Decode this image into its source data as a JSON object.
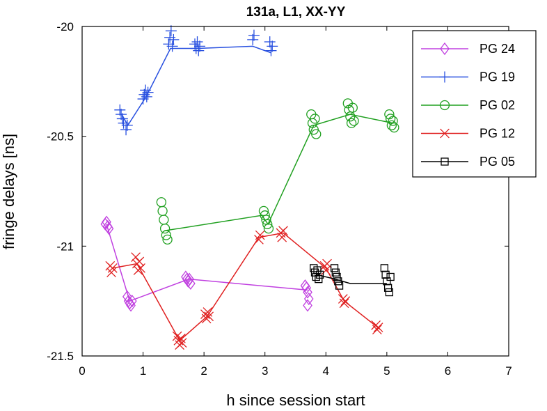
{
  "chart_data": {
    "type": "line",
    "title": "131a, L1, XX-YY",
    "xlabel": "h since session start",
    "ylabel": "fringe delays [ns]",
    "xlim": [
      0,
      7
    ],
    "ylim": [
      -21.5,
      -20
    ],
    "xticks": [
      0,
      1,
      2,
      3,
      4,
      5,
      6,
      7
    ],
    "yticks": [
      -21.5,
      -21,
      -20.5,
      -20
    ],
    "xtick_labels": [
      "0",
      "1",
      "2",
      "3",
      "4",
      "5",
      "6",
      "7"
    ],
    "ytick_labels": [
      "-21.5",
      "-21",
      "-20.5",
      "-20"
    ],
    "legend_position": "top-right",
    "series": [
      {
        "name": "PG 24",
        "color": "#c040e0",
        "marker": "diamond",
        "line": [
          [
            0.4,
            -20.9
          ],
          [
            0.78,
            -21.25
          ],
          [
            1.75,
            -21.15
          ],
          [
            3.7,
            -21.2
          ]
        ],
        "points": [
          [
            0.38,
            -20.9
          ],
          [
            0.4,
            -20.89
          ],
          [
            0.42,
            -20.91
          ],
          [
            0.44,
            -20.92
          ],
          [
            0.74,
            -21.23
          ],
          [
            0.76,
            -21.25
          ],
          [
            0.78,
            -21.26
          ],
          [
            0.8,
            -21.27
          ],
          [
            0.82,
            -21.25
          ],
          [
            1.7,
            -21.14
          ],
          [
            1.72,
            -21.15
          ],
          [
            1.74,
            -21.16
          ],
          [
            1.76,
            -21.15
          ],
          [
            1.78,
            -21.17
          ],
          [
            3.66,
            -21.18
          ],
          [
            3.68,
            -21.19
          ],
          [
            3.7,
            -21.21
          ],
          [
            3.72,
            -21.24
          ],
          [
            3.7,
            -21.27
          ]
        ]
      },
      {
        "name": "PG 19",
        "color": "#2850e0",
        "marker": "plus",
        "line": [
          [
            0.65,
            -20.4
          ],
          [
            0.75,
            -20.45
          ],
          [
            1.05,
            -20.32
          ],
          [
            1.45,
            -20.1
          ],
          [
            1.9,
            -20.1
          ],
          [
            2.8,
            -20.09
          ],
          [
            3.1,
            -20.12
          ]
        ],
        "points": [
          [
            0.62,
            -20.38
          ],
          [
            0.64,
            -20.4
          ],
          [
            0.66,
            -20.42
          ],
          [
            0.68,
            -20.44
          ],
          [
            0.72,
            -20.47
          ],
          [
            0.74,
            -20.45
          ],
          [
            1.0,
            -20.33
          ],
          [
            1.02,
            -20.31
          ],
          [
            1.04,
            -20.29
          ],
          [
            1.06,
            -20.32
          ],
          [
            1.08,
            -20.3
          ],
          [
            1.42,
            -20.08
          ],
          [
            1.44,
            -20.05
          ],
          [
            1.46,
            -20.02
          ],
          [
            1.48,
            -20.09
          ],
          [
            1.5,
            -20.06
          ],
          [
            1.85,
            -20.08
          ],
          [
            1.87,
            -20.1
          ],
          [
            1.89,
            -20.07
          ],
          [
            1.91,
            -20.11
          ],
          [
            1.93,
            -20.09
          ],
          [
            2.8,
            -20.06
          ],
          [
            2.82,
            -20.04
          ],
          [
            3.08,
            -20.07
          ],
          [
            3.1,
            -20.11
          ],
          [
            3.12,
            -20.09
          ]
        ]
      },
      {
        "name": "PG 02",
        "color": "#20a020",
        "marker": "circle",
        "line": [
          [
            1.35,
            -20.93
          ],
          [
            2.95,
            -20.86
          ],
          [
            3.05,
            -20.9
          ],
          [
            3.8,
            -20.45
          ],
          [
            4.4,
            -20.4
          ],
          [
            5.1,
            -20.44
          ]
        ],
        "points": [
          [
            1.3,
            -20.8
          ],
          [
            1.32,
            -20.84
          ],
          [
            1.34,
            -20.88
          ],
          [
            1.36,
            -20.92
          ],
          [
            1.38,
            -20.95
          ],
          [
            1.4,
            -20.97
          ],
          [
            2.98,
            -20.84
          ],
          [
            3.0,
            -20.86
          ],
          [
            3.02,
            -20.88
          ],
          [
            3.04,
            -20.9
          ],
          [
            3.06,
            -20.92
          ],
          [
            3.76,
            -20.4
          ],
          [
            3.78,
            -20.44
          ],
          [
            3.8,
            -20.47
          ],
          [
            3.82,
            -20.42
          ],
          [
            3.84,
            -20.49
          ],
          [
            4.36,
            -20.35
          ],
          [
            4.38,
            -20.38
          ],
          [
            4.4,
            -20.41
          ],
          [
            4.42,
            -20.44
          ],
          [
            4.44,
            -20.37
          ],
          [
            4.46,
            -20.43
          ],
          [
            5.04,
            -20.4
          ],
          [
            5.06,
            -20.42
          ],
          [
            5.08,
            -20.45
          ],
          [
            5.1,
            -20.43
          ],
          [
            5.12,
            -20.46
          ]
        ]
      },
      {
        "name": "PG 12",
        "color": "#e02020",
        "marker": "x",
        "line": [
          [
            0.5,
            -21.1
          ],
          [
            0.9,
            -21.08
          ],
          [
            1.6,
            -21.43
          ],
          [
            2.05,
            -21.32
          ],
          [
            2.9,
            -20.96
          ],
          [
            3.3,
            -20.94
          ],
          [
            4.0,
            -21.1
          ],
          [
            4.3,
            -21.25
          ],
          [
            4.85,
            -21.37
          ]
        ],
        "points": [
          [
            0.46,
            -21.09
          ],
          [
            0.48,
            -21.12
          ],
          [
            0.5,
            -21.1
          ],
          [
            0.88,
            -21.05
          ],
          [
            0.9,
            -21.08
          ],
          [
            0.92,
            -21.11
          ],
          [
            0.94,
            -21.07
          ],
          [
            0.96,
            -21.1
          ],
          [
            1.56,
            -21.41
          ],
          [
            1.58,
            -21.43
          ],
          [
            1.6,
            -21.45
          ],
          [
            1.62,
            -21.42
          ],
          [
            1.64,
            -21.44
          ],
          [
            2.02,
            -21.31
          ],
          [
            2.04,
            -21.33
          ],
          [
            2.06,
            -21.3
          ],
          [
            2.08,
            -21.32
          ],
          [
            2.9,
            -20.97
          ],
          [
            2.92,
            -20.95
          ],
          [
            3.26,
            -20.94
          ],
          [
            3.28,
            -20.96
          ],
          [
            3.3,
            -20.93
          ],
          [
            3.98,
            -21.09
          ],
          [
            4.0,
            -21.11
          ],
          [
            4.02,
            -21.08
          ],
          [
            4.28,
            -21.24
          ],
          [
            4.3,
            -21.26
          ],
          [
            4.32,
            -21.25
          ],
          [
            4.82,
            -21.36
          ],
          [
            4.84,
            -21.38
          ],
          [
            4.86,
            -21.37
          ]
        ]
      },
      {
        "name": "PG 05",
        "color": "#000000",
        "marker": "square",
        "line": [
          [
            3.85,
            -21.13
          ],
          [
            4.15,
            -21.15
          ],
          [
            4.4,
            -21.17
          ],
          [
            5.0,
            -21.17
          ]
        ],
        "points": [
          [
            3.8,
            -21.1
          ],
          [
            3.82,
            -21.12
          ],
          [
            3.84,
            -21.14
          ],
          [
            3.86,
            -21.11
          ],
          [
            3.88,
            -21.15
          ],
          [
            3.9,
            -21.13
          ],
          [
            4.14,
            -21.1
          ],
          [
            4.16,
            -21.12
          ],
          [
            4.18,
            -21.14
          ],
          [
            4.2,
            -21.16
          ],
          [
            4.22,
            -21.18
          ],
          [
            4.96,
            -21.1
          ],
          [
            4.98,
            -21.13
          ],
          [
            5.0,
            -21.16
          ],
          [
            5.02,
            -21.19
          ],
          [
            5.04,
            -21.21
          ],
          [
            5.06,
            -21.14
          ]
        ]
      }
    ]
  }
}
